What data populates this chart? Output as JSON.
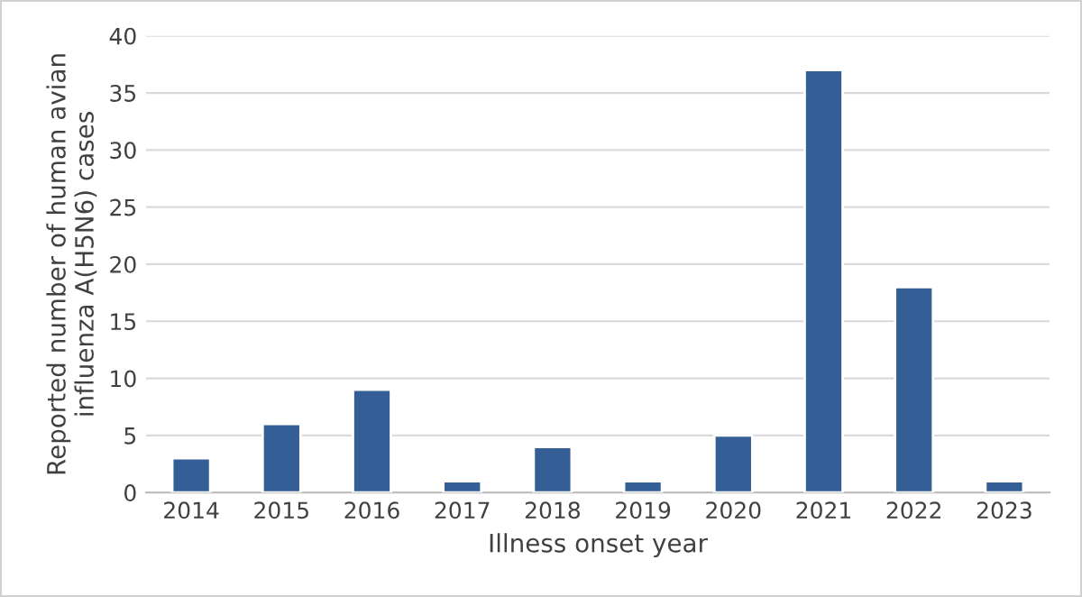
{
  "chart_data": {
    "type": "bar",
    "xlabel": "Illness onset year",
    "ylabel": "Reported number of human avian\ninfluenza A(H5N6) cases",
    "categories": [
      "2014",
      "2015",
      "2016",
      "2017",
      "2018",
      "2019",
      "2020",
      "2021",
      "2022",
      "2023"
    ],
    "values": [
      3,
      6,
      9,
      1,
      4,
      1,
      5,
      37,
      18,
      1
    ],
    "color": "#335e96",
    "ylim": [
      0,
      40
    ],
    "yticks": [
      0,
      5,
      10,
      15,
      20,
      25,
      30,
      35,
      40
    ],
    "grid": "y",
    "legend": false
  }
}
